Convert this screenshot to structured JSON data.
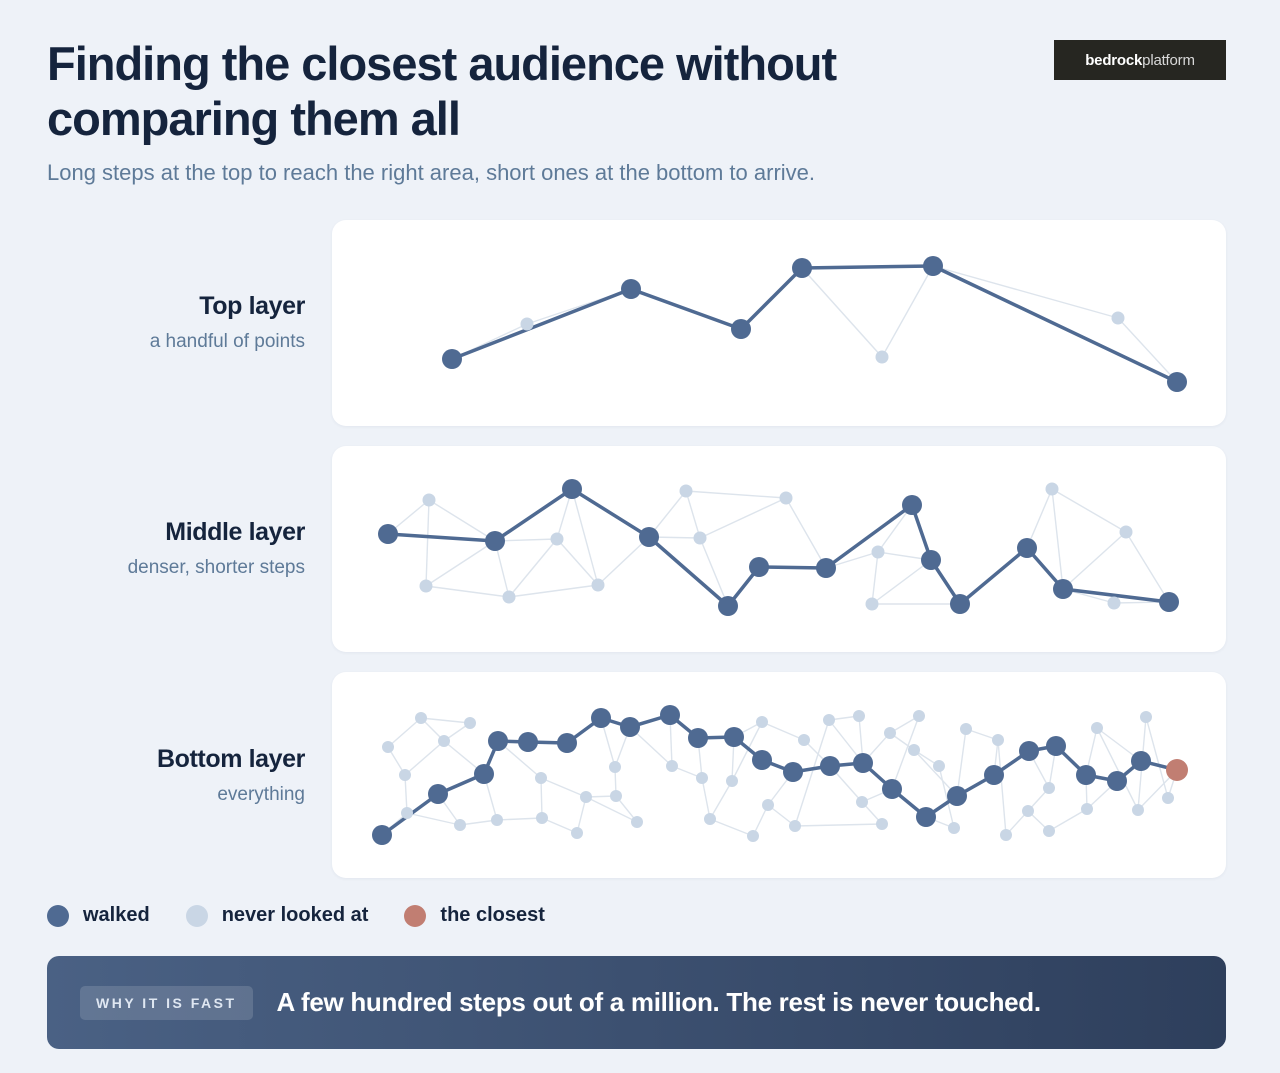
{
  "header": {
    "title": "Finding the closest audience without comparing them all",
    "subtitle": "Long steps at the top to reach the right area, short ones at the bottom to arrive.",
    "logo_bold": "bedrock",
    "logo_light": "platform"
  },
  "layers": [
    {
      "name": "Top layer",
      "description": "a handful of points"
    },
    {
      "name": "Middle layer",
      "description": "denser, shorter steps"
    },
    {
      "name": "Bottom layer",
      "description": "everything"
    }
  ],
  "legend": {
    "walked": "walked",
    "never": "never looked at",
    "closest": "the closest"
  },
  "colors": {
    "walked": "#4f6a92",
    "never": "#c9d6e5",
    "closest": "#c17e72",
    "edge": "#dde4ec",
    "background": "#eef2f8"
  },
  "banner": {
    "badge": "WHY IT IS FAST",
    "text": "A few hundred steps out of a million. The rest is never touched."
  }
}
